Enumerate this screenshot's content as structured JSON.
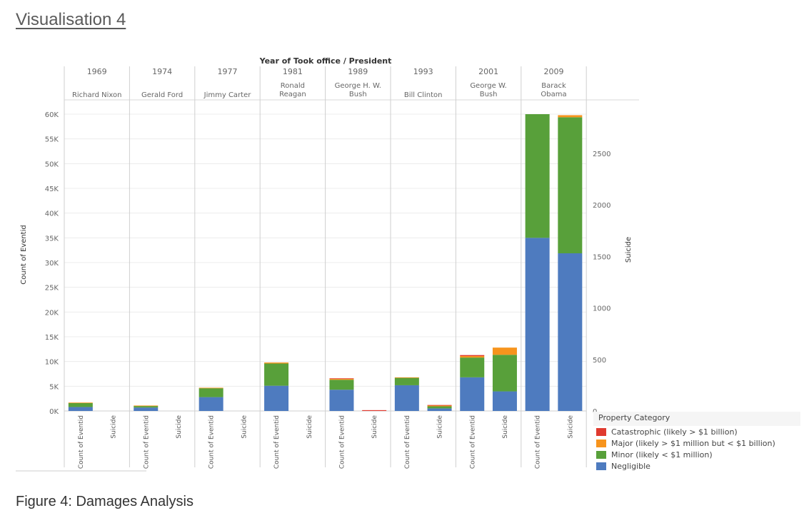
{
  "page": {
    "title": "Visualisation 4",
    "caption": "Figure 4: Damages Analysis"
  },
  "chart_data": {
    "type": "bar",
    "stacked": true,
    "header_title": "Year of Took office  /  President",
    "groups": [
      {
        "year": "1969",
        "president": [
          "Richard Nixon"
        ]
      },
      {
        "year": "1974",
        "president": [
          "Gerald Ford"
        ]
      },
      {
        "year": "1977",
        "president": [
          "Jimmy Carter"
        ]
      },
      {
        "year": "1981",
        "president": [
          "Ronald",
          "Reagan"
        ]
      },
      {
        "year": "1989",
        "president": [
          "George H. W.",
          "Bush"
        ]
      },
      {
        "year": "1993",
        "president": [
          "Bill Clinton"
        ]
      },
      {
        "year": "2001",
        "president": [
          "George W.",
          "Bush"
        ]
      },
      {
        "year": "2009",
        "president": [
          "Barack",
          "Obama"
        ]
      }
    ],
    "measures": [
      "Count of Eventid",
      "Suicide"
    ],
    "left_axis": {
      "label": "Count of Eventid",
      "ylim": [
        0,
        60000
      ],
      "ticks": [
        0,
        5000,
        10000,
        15000,
        20000,
        25000,
        30000,
        35000,
        40000,
        45000,
        50000,
        55000,
        60000
      ],
      "tick_labels": [
        "0K",
        "5K",
        "10K",
        "15K",
        "20K",
        "25K",
        "30K",
        "35K",
        "40K",
        "45K",
        "50K",
        "55K",
        "60K"
      ]
    },
    "right_axis": {
      "label": "Suicide",
      "ylim": [
        0,
        2880
      ],
      "ticks": [
        0,
        500,
        1000,
        1500,
        2000,
        2500
      ],
      "tick_labels": [
        "0",
        "500",
        "1000",
        "1500",
        "2000",
        "2500"
      ]
    },
    "legend": {
      "title": "Property Category",
      "placement": "bottom-right",
      "items": [
        {
          "key": "catastrophic",
          "label": "Catastrophic (likely > $1 billion)",
          "color": "#e03a2f"
        },
        {
          "key": "major",
          "label": "Major (likely > $1 million but < $1 billion)",
          "color": "#f7941d"
        },
        {
          "key": "minor",
          "label": "Minor (likely < $1 million)",
          "color": "#58a03a"
        },
        {
          "key": "negligible",
          "label": "Negligible",
          "color": "#4e7bbf"
        }
      ]
    },
    "series_order": [
      "negligible",
      "minor",
      "major",
      "catastrophic"
    ],
    "count_of_eventid": [
      {
        "negligible": 800,
        "minor": 800,
        "major": 100,
        "catastrophic": 0
      },
      {
        "negligible": 700,
        "minor": 300,
        "major": 100,
        "catastrophic": 0
      },
      {
        "negligible": 2800,
        "minor": 1800,
        "major": 100,
        "catastrophic": 0
      },
      {
        "negligible": 5100,
        "minor": 4500,
        "major": 200,
        "catastrophic": 0
      },
      {
        "negligible": 4300,
        "minor": 2000,
        "major": 200,
        "catastrophic": 100
      },
      {
        "negligible": 5200,
        "minor": 1500,
        "major": 100,
        "catastrophic": 0
      },
      {
        "negligible": 6800,
        "minor": 4000,
        "major": 300,
        "catastrophic": 200
      },
      {
        "negligible": 35000,
        "minor": 25000,
        "major": 0,
        "catastrophic": 0
      }
    ],
    "suicide": [
      {
        "negligible": 0,
        "minor": 0,
        "major": 0,
        "catastrophic": 0
      },
      {
        "negligible": 0,
        "minor": 0,
        "major": 0,
        "catastrophic": 0
      },
      {
        "negligible": 0,
        "minor": 0,
        "major": 0,
        "catastrophic": 0
      },
      {
        "negligible": 0,
        "minor": 0,
        "major": 0,
        "catastrophic": 0
      },
      {
        "negligible": 0,
        "minor": 0,
        "major": 0,
        "catastrophic": 8
      },
      {
        "negligible": 25,
        "minor": 20,
        "major": 10,
        "catastrophic": 3
      },
      {
        "negligible": 190,
        "minor": 355,
        "major": 70,
        "catastrophic": 0
      },
      {
        "negligible": 1530,
        "minor": 1320,
        "major": 20,
        "catastrophic": 0
      }
    ],
    "grid": true
  }
}
